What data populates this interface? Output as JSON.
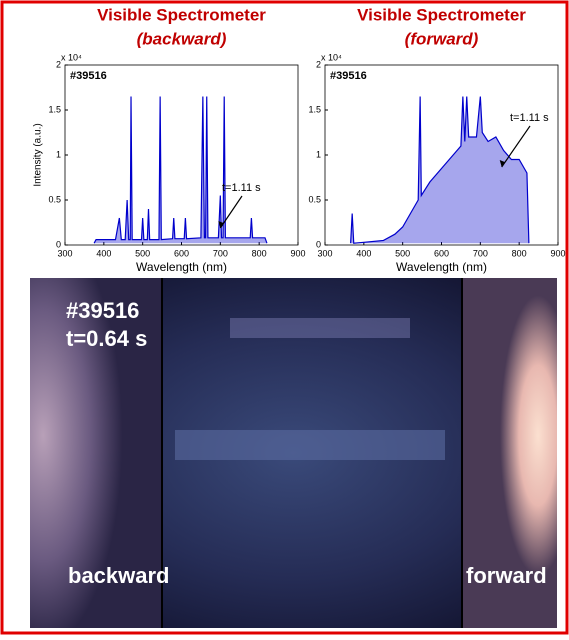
{
  "chart_data": [
    {
      "type": "line",
      "title": "Visible Spectrometer",
      "subtitle": "(backward)",
      "label": "#39516",
      "annotation": "t=1.11 s",
      "xlabel": "Wavelength (nm)",
      "ylabel": "Intensity (a.u.)",
      "y_multiplier": "x 10⁴",
      "xlim": [
        300,
        900
      ],
      "ylim": [
        0,
        2
      ],
      "xticks": [
        300,
        400,
        500,
        600,
        700,
        800,
        900
      ],
      "yticks": [
        0,
        0.5,
        1,
        1.5,
        2
      ],
      "x": [
        375,
        380,
        430,
        440,
        445,
        455,
        460,
        464,
        468,
        470,
        473,
        497,
        500,
        503,
        512,
        515,
        518,
        542,
        545,
        548,
        577,
        580,
        583,
        607,
        610,
        613,
        650,
        655,
        659,
        662,
        665,
        668,
        695,
        700,
        703,
        707,
        710,
        713,
        777,
        780,
        783,
        815,
        820
      ],
      "series": [
        {
          "color": "#0000cc",
          "values": [
            0.02,
            0.06,
            0.06,
            0.3,
            0.06,
            0.06,
            0.5,
            0.06,
            0.06,
            1.65,
            0.06,
            0.06,
            0.3,
            0.06,
            0.06,
            0.4,
            0.06,
            0.06,
            1.65,
            0.06,
            0.07,
            0.3,
            0.07,
            0.07,
            0.3,
            0.07,
            0.08,
            1.65,
            0.08,
            0.08,
            1.65,
            0.08,
            0.08,
            0.55,
            0.08,
            0.08,
            1.65,
            0.08,
            0.08,
            0.3,
            0.08,
            0.08,
            0.02
          ]
        }
      ]
    },
    {
      "type": "line",
      "title": "Visible Spectrometer",
      "subtitle": "(forward)",
      "label": "#39516",
      "annotation": "t=1.11 s",
      "xlabel": "Wavelength (nm)",
      "y_multiplier": "x 10⁴",
      "xlim": [
        300,
        900
      ],
      "ylim": [
        0,
        2
      ],
      "xticks": [
        300,
        400,
        500,
        600,
        700,
        800,
        900
      ],
      "yticks": [
        0,
        0.5,
        1,
        1.5,
        2
      ],
      "x": [
        366,
        370,
        374,
        400,
        450,
        480,
        500,
        520,
        540,
        545,
        548,
        570,
        600,
        630,
        650,
        655,
        660,
        665,
        670,
        690,
        700,
        705,
        720,
        740,
        760,
        780,
        800,
        820,
        825
      ],
      "series": [
        {
          "color": "#0000cc",
          "values": [
            0.02,
            0.35,
            0.02,
            0.03,
            0.05,
            0.12,
            0.2,
            0.35,
            0.5,
            1.65,
            0.55,
            0.7,
            0.85,
            1.0,
            1.1,
            1.65,
            1.15,
            1.65,
            1.2,
            1.2,
            1.65,
            1.25,
            1.15,
            1.2,
            1.05,
            0.95,
            0.95,
            0.8,
            0.02
          ]
        }
      ]
    }
  ],
  "photo": {
    "shot": "#39516",
    "time": "t=0.64 s",
    "left": "backward",
    "right": "forward"
  }
}
